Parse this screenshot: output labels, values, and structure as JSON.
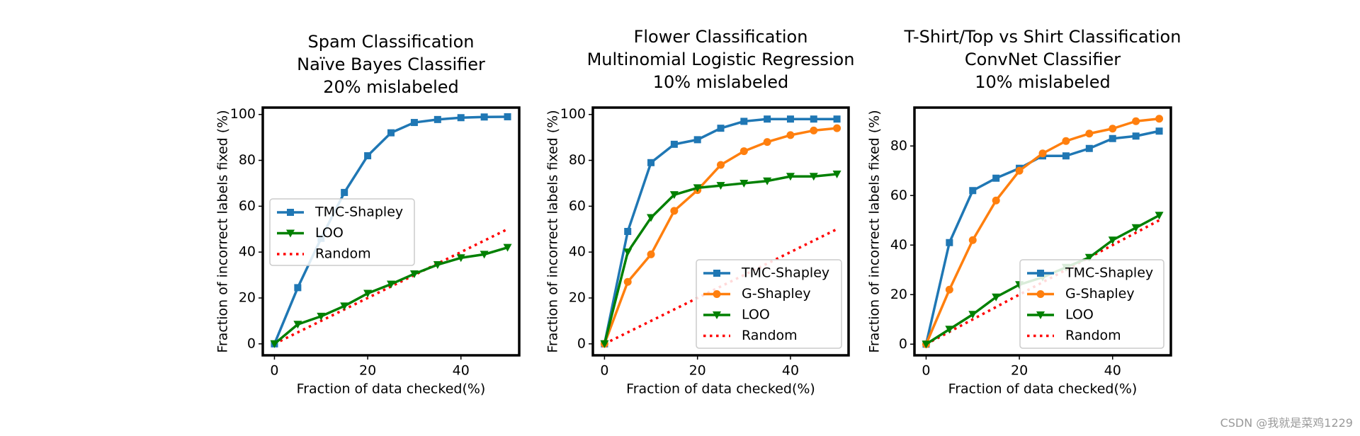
{
  "chart_data": [
    {
      "type": "line",
      "title": [
        "Spam Classification",
        "Naïve Bayes Classifier",
        "20% mislabeled"
      ],
      "xlabel": "Fraction of data checked(%)",
      "ylabel": "Fraction of incorrect labels fixed (%)",
      "xlim": [
        -2.5,
        52.5
      ],
      "ylim": [
        -5,
        103
      ],
      "xticks": [
        0,
        20,
        40
      ],
      "xtick_labels": [
        "0",
        "20",
        "40"
      ],
      "yticks": [
        0,
        20,
        40,
        60,
        80,
        100
      ],
      "ytick_labels": [
        "0",
        "20",
        "40",
        "60",
        "80",
        "100"
      ],
      "legend_position": "center-left",
      "series": [
        {
          "name": "TMC-Shapley",
          "color": "#1f77b4",
          "marker": "square",
          "style": "solid",
          "x": [
            0,
            5,
            10,
            15,
            20,
            25,
            30,
            35,
            40,
            45,
            50
          ],
          "y": [
            0,
            24.5,
            46,
            66,
            82,
            92,
            96.5,
            97.8,
            98.6,
            98.9,
            99
          ]
        },
        {
          "name": "LOO",
          "color": "#008000",
          "marker": "triangle-down",
          "style": "solid",
          "x": [
            0,
            5,
            10,
            15,
            20,
            25,
            30,
            35,
            40,
            45,
            50
          ],
          "y": [
            0,
            8.5,
            12,
            16.5,
            22,
            26,
            30.5,
            34.5,
            37.5,
            39,
            42
          ]
        },
        {
          "name": "Random",
          "color": "#ff0000",
          "marker": "none",
          "style": "dotted",
          "x": [
            0,
            50
          ],
          "y": [
            0,
            50
          ]
        }
      ]
    },
    {
      "type": "line",
      "title": [
        "Flower Classification",
        "Multinomial Logistic Regression",
        "10% mislabeled"
      ],
      "xlabel": "Fraction of data checked(%)",
      "ylabel": "Fraction of incorrect labels fixed (%)",
      "xlim": [
        -2.5,
        52.5
      ],
      "ylim": [
        -5,
        103
      ],
      "xticks": [
        0,
        20,
        40
      ],
      "xtick_labels": [
        "0",
        "20",
        "40"
      ],
      "yticks": [
        0,
        20,
        40,
        60,
        80,
        100
      ],
      "ytick_labels": [
        "0",
        "20",
        "40",
        "60",
        "80",
        "100"
      ],
      "legend_position": "lower-right",
      "series": [
        {
          "name": "TMC-Shapley",
          "color": "#1f77b4",
          "marker": "square",
          "style": "solid",
          "x": [
            0,
            5,
            10,
            15,
            20,
            25,
            30,
            35,
            40,
            45,
            50
          ],
          "y": [
            0,
            49,
            79,
            87,
            89,
            94,
            97,
            98,
            98,
            98,
            98
          ]
        },
        {
          "name": "G-Shapley",
          "color": "#ff7f0e",
          "marker": "circle",
          "style": "solid",
          "x": [
            0,
            5,
            10,
            15,
            20,
            25,
            30,
            35,
            40,
            45,
            50
          ],
          "y": [
            0,
            27,
            39,
            58,
            67,
            78,
            84,
            88,
            91,
            93,
            94
          ]
        },
        {
          "name": "LOO",
          "color": "#008000",
          "marker": "triangle-down",
          "style": "solid",
          "x": [
            0,
            5,
            10,
            15,
            20,
            25,
            30,
            35,
            40,
            45,
            50
          ],
          "y": [
            0,
            40,
            55,
            65,
            68,
            69,
            70,
            71,
            73,
            73,
            74
          ]
        },
        {
          "name": "Random",
          "color": "#ff0000",
          "marker": "none",
          "style": "dotted",
          "x": [
            0,
            50
          ],
          "y": [
            0,
            50
          ]
        }
      ]
    },
    {
      "type": "line",
      "title": [
        "T-Shirt/Top vs Shirt Classification",
        "ConvNet Classifier",
        "10% mislabeled"
      ],
      "xlabel": "Fraction of data checked(%)",
      "ylabel": "Fraction of incorrect labels fixed (%)",
      "xlim": [
        -2.5,
        52.5
      ],
      "ylim": [
        -4.5,
        95.5
      ],
      "xticks": [
        0,
        20,
        40
      ],
      "xtick_labels": [
        "0",
        "20",
        "40"
      ],
      "yticks": [
        0,
        20,
        40,
        60,
        80
      ],
      "ytick_labels": [
        "0",
        "20",
        "40",
        "60",
        "80"
      ],
      "legend_position": "lower-right",
      "series": [
        {
          "name": "TMC-Shapley",
          "color": "#1f77b4",
          "marker": "square",
          "style": "solid",
          "x": [
            0,
            5,
            10,
            15,
            20,
            25,
            30,
            35,
            40,
            45,
            50
          ],
          "y": [
            0,
            41,
            62,
            67,
            71,
            76,
            76,
            79,
            83,
            84,
            86
          ]
        },
        {
          "name": "G-Shapley",
          "color": "#ff7f0e",
          "marker": "circle",
          "style": "solid",
          "x": [
            0,
            5,
            10,
            15,
            20,
            25,
            30,
            35,
            40,
            45,
            50
          ],
          "y": [
            0,
            22,
            42,
            58,
            70,
            77,
            82,
            85,
            87,
            90,
            91
          ]
        },
        {
          "name": "LOO",
          "color": "#008000",
          "marker": "triangle-down",
          "style": "solid",
          "x": [
            0,
            5,
            10,
            15,
            20,
            25,
            30,
            35,
            40,
            45,
            50
          ],
          "y": [
            0,
            6,
            12,
            19,
            24,
            27,
            31,
            35,
            42,
            47,
            52
          ]
        },
        {
          "name": "Random",
          "color": "#ff0000",
          "marker": "none",
          "style": "dotted",
          "x": [
            0,
            50
          ],
          "y": [
            0,
            50
          ]
        }
      ]
    }
  ],
  "watermark": "CSDN @我就是菜鸡1229"
}
